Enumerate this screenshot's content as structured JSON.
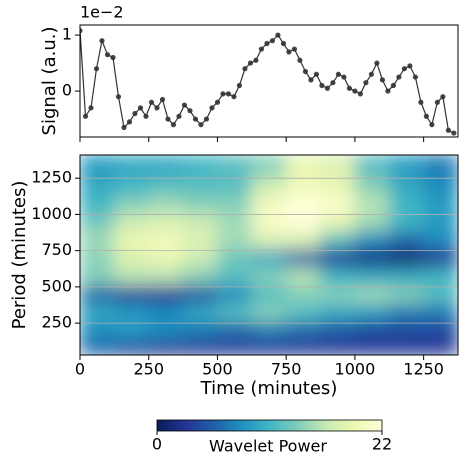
{
  "chart_data": [
    {
      "type": "line",
      "ylabel": "Signal (a.u.)",
      "offset_label": "1e−2",
      "x": [
        0,
        20,
        40,
        60,
        80,
        100,
        120,
        140,
        160,
        180,
        200,
        220,
        240,
        260,
        280,
        300,
        320,
        340,
        360,
        380,
        400,
        420,
        440,
        460,
        480,
        500,
        520,
        540,
        560,
        580,
        600,
        620,
        640,
        660,
        680,
        700,
        720,
        740,
        760,
        780,
        800,
        820,
        840,
        860,
        880,
        900,
        920,
        940,
        960,
        980,
        1000,
        1020,
        1040,
        1060,
        1080,
        1100,
        1120,
        1140,
        1160,
        1180,
        1200,
        1220,
        1240,
        1260,
        1280,
        1300,
        1320,
        1340,
        1360
      ],
      "series": [
        {
          "color": "#333333",
          "values": [
            1.08,
            -0.45,
            -0.3,
            0.4,
            0.9,
            0.65,
            0.6,
            -0.1,
            -0.65,
            -0.55,
            -0.4,
            -0.3,
            -0.45,
            -0.2,
            -0.3,
            -0.15,
            -0.5,
            -0.6,
            -0.45,
            -0.25,
            -0.35,
            -0.5,
            -0.6,
            -0.5,
            -0.3,
            -0.2,
            -0.05,
            -0.05,
            -0.1,
            0.1,
            0.4,
            0.5,
            0.55,
            0.75,
            0.85,
            0.9,
            1.0,
            0.85,
            0.7,
            0.75,
            0.55,
            0.35,
            0.2,
            0.3,
            0.1,
            0.05,
            0.15,
            0.3,
            0.25,
            0.05,
            0.0,
            -0.05,
            0.15,
            0.3,
            0.5,
            0.2,
            0.0,
            0.1,
            0.25,
            0.4,
            0.45,
            0.25,
            -0.2,
            -0.45,
            -0.6,
            -0.2,
            -0.1,
            -0.7,
            -0.75
          ]
        }
      ],
      "xlim": [
        0,
        1375
      ],
      "xticks": [
        0,
        250,
        500,
        750,
        1000,
        1250
      ],
      "ylim": [
        -0.82,
        1.18
      ],
      "yticks": [
        0,
        1
      ]
    },
    {
      "type": "heatmap",
      "xlabel": "Time (minutes)",
      "ylabel": "Period (minutes)",
      "x": [
        62.5,
        187.5,
        312.5,
        437.5,
        562.5,
        687.5,
        812.5,
        937.5,
        1062.5,
        1187.5,
        1312.5
      ],
      "y": [
        75,
        200,
        325,
        450,
        575,
        700,
        825,
        950,
        1075,
        1200,
        1325
      ],
      "values": [
        [
          6,
          4,
          3,
          3,
          3,
          3,
          3,
          3,
          3,
          3,
          3
        ],
        [
          8,
          9,
          8,
          7,
          6,
          7,
          6,
          5,
          4,
          4,
          4
        ],
        [
          10,
          9,
          8,
          10,
          12,
          14,
          12,
          10,
          9,
          7,
          7
        ],
        [
          6,
          4,
          3,
          5,
          8,
          12,
          14,
          14,
          15,
          14,
          12
        ],
        [
          14,
          16,
          16,
          14,
          12,
          14,
          16,
          11,
          10,
          10,
          11
        ],
        [
          14,
          18,
          19,
          17,
          13,
          10,
          6,
          3,
          2,
          1,
          3
        ],
        [
          15,
          19,
          20,
          18,
          15,
          18,
          18,
          12,
          8,
          6,
          8
        ],
        [
          13,
          17,
          18,
          17,
          15,
          21,
          22,
          19,
          15,
          11,
          9
        ],
        [
          11,
          14,
          15,
          14,
          14,
          20,
          22,
          21,
          16,
          11,
          9
        ],
        [
          10,
          11,
          12,
          12,
          12,
          17,
          20,
          19,
          14,
          10,
          8
        ],
        [
          9,
          10,
          10,
          11,
          12,
          14,
          19,
          18,
          12,
          9,
          7
        ]
      ],
      "xlim": [
        0,
        1375
      ],
      "xticks": [
        0,
        250,
        500,
        750,
        1000,
        1250
      ],
      "ylim": [
        30,
        1410
      ],
      "yticks": [
        250,
        500,
        750,
        1000,
        1250
      ],
      "grid": true,
      "colormap": [
        "#081d58",
        "#253494",
        "#225ea8",
        "#1d91c0",
        "#41b6c4",
        "#7fcdbb",
        "#c7e9b4",
        "#edf8b1",
        "#ffffd9"
      ],
      "colorbar": {
        "label": "Wavelet Power",
        "lim": [
          0,
          22
        ],
        "ticks": [
          0,
          22
        ]
      }
    }
  ]
}
